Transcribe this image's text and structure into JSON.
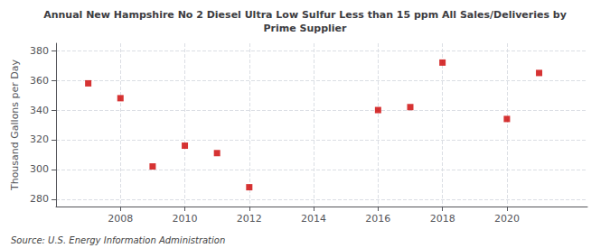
{
  "chart_data": {
    "type": "scatter",
    "title": "Annual New Hampshire No 2 Diesel Ultra Low Sulfur Less than 15 ppm All Sales/Deliveries by\nPrime Supplier",
    "ylabel": "Thousand Gallons per Day",
    "annotation": "Source: U.S. Energy Information Administration",
    "x": [
      2007,
      2008,
      2009,
      2010,
      2011,
      2012,
      2016,
      2017,
      2018,
      2020,
      2021
    ],
    "values": [
      358,
      348,
      302,
      316,
      311,
      288,
      340,
      342,
      372,
      334,
      365
    ],
    "color": "#cc0000",
    "marker": "square",
    "xlim": [
      2006.0,
      2022.5
    ],
    "ylim": [
      275,
      385
    ],
    "xticks": [
      2008,
      2010,
      2012,
      2014,
      2016,
      2018,
      2020
    ],
    "yticks": [
      280,
      300,
      320,
      340,
      360,
      380
    ],
    "grid": true
  }
}
